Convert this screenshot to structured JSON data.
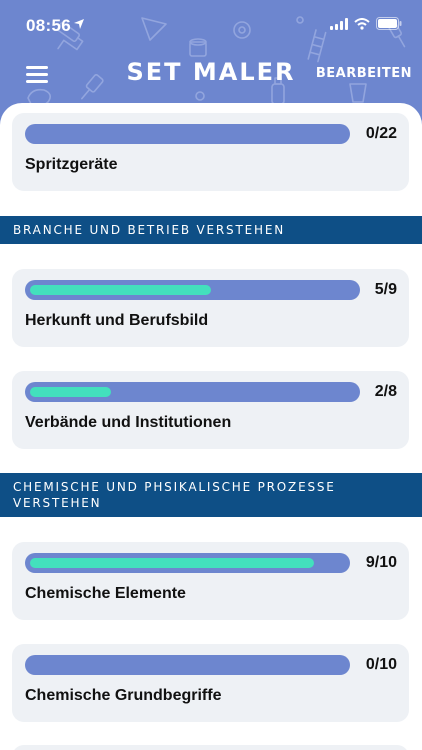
{
  "status": {
    "time": "08:56"
  },
  "header": {
    "title": "SET MALER",
    "edit_label": "BEARBEITEN"
  },
  "cards": [
    {
      "title": "Spritzgeräte",
      "count": "0/22",
      "progress": 0
    },
    {
      "title": "Herkunft und Berufsbild",
      "count": "5/9",
      "progress": 0.556
    },
    {
      "title": "Verbände und Institutionen",
      "count": "2/8",
      "progress": 0.25
    },
    {
      "title": "Chemische Elemente",
      "count": "9/10",
      "progress": 0.9
    },
    {
      "title": "Chemische Grundbegriffe",
      "count": "0/10",
      "progress": 0
    }
  ],
  "sections": [
    {
      "title": "BRANCHE UND BETRIEB VERSTEHEN"
    },
    {
      "title": "CHEMISCHE UND PHSIKALISCHE PROZESSE VERSTEHEN"
    }
  ],
  "colors": {
    "header": "#6d86cf",
    "section": "#0e4f86",
    "fill": "#43e0bd",
    "card": "#eef1f5"
  }
}
